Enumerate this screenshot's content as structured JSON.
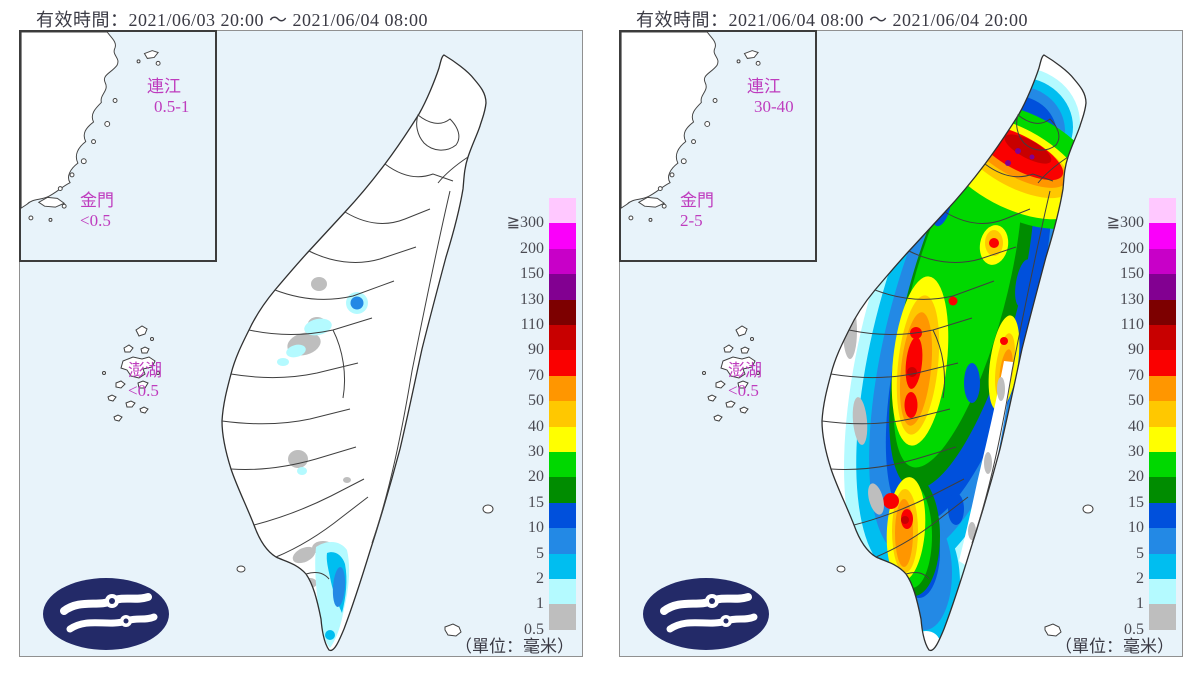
{
  "panels": [
    {
      "valid_time_label": "有效時間：2021/06/03 20:00 ～ 2021/06/04 08:00",
      "lienchiang": {
        "name": "連江",
        "value": "0.5-1"
      },
      "kinmen": {
        "name": "金門",
        "value": "<0.5"
      },
      "penghu": {
        "name": "澎湖",
        "value": "<0.5"
      }
    },
    {
      "valid_time_label": "有效時間：2021/06/04 08:00 ～ 2021/06/04 20:00",
      "lienchiang": {
        "name": "連江",
        "value": "30-40"
      },
      "kinmen": {
        "name": "金門",
        "value": "2-5"
      },
      "penghu": {
        "name": "澎湖",
        "value": "<0.5"
      }
    }
  ],
  "legend": {
    "unit_label": "（單位：毫米）",
    "levels": [
      {
        "label": "≧300",
        "color": "#FFC8FF"
      },
      {
        "label": "200",
        "color": "#FA00FA"
      },
      {
        "label": "150",
        "color": "#C800C8"
      },
      {
        "label": "130",
        "color": "#820091"
      },
      {
        "label": "110",
        "color": "#7D0000"
      },
      {
        "label": "90",
        "color": "#C80000"
      },
      {
        "label": "70",
        "color": "#FA0000"
      },
      {
        "label": "50",
        "color": "#FF9600"
      },
      {
        "label": "40",
        "color": "#FFC800"
      },
      {
        "label": "30",
        "color": "#FFFF00"
      },
      {
        "label": "20",
        "color": "#00D800"
      },
      {
        "label": "15",
        "color": "#008C00"
      },
      {
        "label": "10",
        "color": "#0050DC"
      },
      {
        "label": "5",
        "color": "#2389E5"
      },
      {
        "label": "2",
        "color": "#00BEF0"
      },
      {
        "label": "1",
        "color": "#B4FAFF"
      },
      {
        "label": "0.5",
        "color": "#BEBEBE"
      }
    ]
  },
  "colors": {
    "sea": "#E8F3FA",
    "land": "#FFFFFF",
    "coastline": "#303030",
    "county_boundary": "#3F3F3F",
    "island_label": "#BE3CBE",
    "title_text": "#3A3A44",
    "legend_text": "#4A4A52",
    "panel_border": "#909090",
    "logo_navy": "#232A68"
  }
}
